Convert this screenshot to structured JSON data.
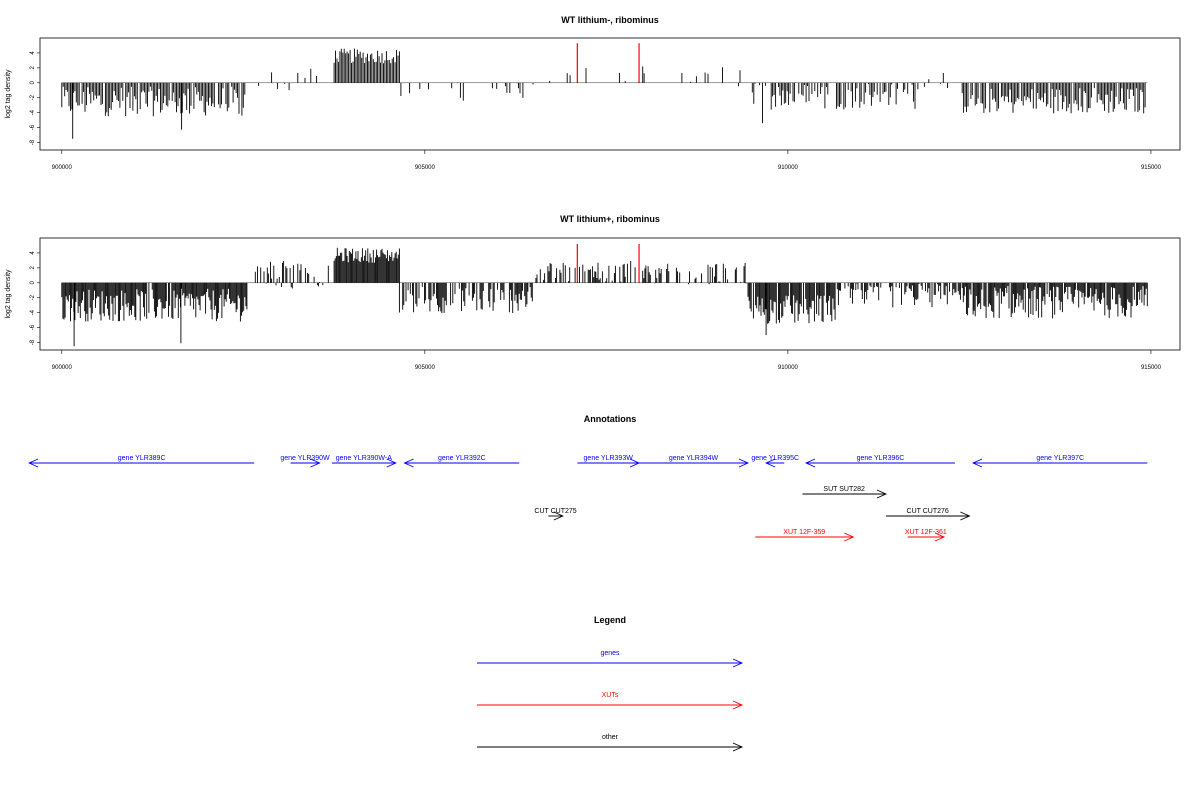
{
  "chart_data": [
    {
      "type": "bar",
      "title": "WT lithium-, ribominus",
      "ylabel": "log2 tag density",
      "xlim": [
        899700,
        915400
      ],
      "ylim": [
        -9,
        6
      ],
      "x_ticks": [
        900000,
        905000,
        910000,
        915000
      ],
      "x_tick_labels": [
        "900000",
        "905000",
        "910000",
        "915000"
      ],
      "y_ticks": [
        4,
        2,
        0,
        -2,
        -4,
        -6,
        -8
      ],
      "y_tick_labels": [
        "4",
        "2",
        "0",
        "-2",
        "-4",
        "-6",
        "-8"
      ],
      "bar_color": "#000000",
      "highlight_color": "#ff0000",
      "highlight_bars": [
        {
          "x": 907100,
          "value": 5.3
        },
        {
          "x": 907950,
          "value": 5.3
        }
      ],
      "profile": {
        "step": 20,
        "segments": [
          {
            "from": 900000,
            "to": 902550,
            "mean": -2.5,
            "spread": 2.0,
            "density": 0.9
          },
          {
            "from": 902650,
            "to": 903750,
            "mean": 0.4,
            "spread": 1.5,
            "density": 0.2
          },
          {
            "from": 903750,
            "to": 904650,
            "mean": 3.6,
            "spread": 1.0,
            "density": 1.0
          },
          {
            "from": 904650,
            "to": 906500,
            "mean": -1.0,
            "spread": 1.4,
            "density": 0.18
          },
          {
            "from": 906500,
            "to": 909450,
            "mean": 0.8,
            "spread": 1.5,
            "density": 0.14
          },
          {
            "from": 909450,
            "to": 911800,
            "mean": -1.8,
            "spread": 1.8,
            "density": 0.55
          },
          {
            "from": 911800,
            "to": 912400,
            "mean": 0.4,
            "spread": 1.2,
            "density": 0.12
          },
          {
            "from": 912400,
            "to": 914950,
            "mean": -2.4,
            "spread": 1.8,
            "density": 0.9
          }
        ],
        "spikes": [
          {
            "x": 900150,
            "value": -7.5
          },
          {
            "x": 901650,
            "value": -6.3
          },
          {
            "x": 909650,
            "value": -5.4
          }
        ]
      }
    },
    {
      "type": "bar",
      "title": "WT lithium+, ribominus",
      "ylabel": "log2 tag density",
      "xlim": [
        899700,
        915400
      ],
      "ylim": [
        -9,
        6
      ],
      "x_ticks": [
        900000,
        905000,
        910000,
        915000
      ],
      "x_tick_labels": [
        "900000",
        "905000",
        "910000",
        "915000"
      ],
      "y_ticks": [
        4,
        2,
        0,
        -2,
        -4,
        -6,
        -8
      ],
      "y_tick_labels": [
        "4",
        "2",
        "0",
        "-2",
        "-4",
        "-6",
        "-8"
      ],
      "bar_color": "#000000",
      "highlight_color": "#ff0000",
      "highlight_bars": [
        {
          "x": 907100,
          "value": 5.2
        },
        {
          "x": 907950,
          "value": 5.2
        }
      ],
      "profile": {
        "step": 15,
        "segments": [
          {
            "from": 900000,
            "to": 902550,
            "mean": -3.0,
            "spread": 2.2,
            "density": 0.95
          },
          {
            "from": 902650,
            "to": 903750,
            "mean": 1.0,
            "spread": 2.0,
            "density": 0.35
          },
          {
            "from": 903750,
            "to": 904650,
            "mean": 3.7,
            "spread": 1.0,
            "density": 1.0
          },
          {
            "from": 904650,
            "to": 906500,
            "mean": -2.3,
            "spread": 1.8,
            "density": 0.6
          },
          {
            "from": 906500,
            "to": 909450,
            "mean": 1.4,
            "spread": 1.6,
            "density": 0.45
          },
          {
            "from": 909450,
            "to": 910650,
            "mean": -3.6,
            "spread": 2.0,
            "density": 0.95
          },
          {
            "from": 910650,
            "to": 912400,
            "mean": -1.0,
            "spread": 2.4,
            "density": 0.65
          },
          {
            "from": 912400,
            "to": 914950,
            "mean": -2.6,
            "spread": 2.2,
            "density": 0.95
          }
        ],
        "spikes": [
          {
            "x": 900170,
            "value": -8.5
          },
          {
            "x": 901640,
            "value": -8.1
          },
          {
            "x": 909700,
            "value": -7.0
          }
        ]
      }
    }
  ],
  "annotations": {
    "title": "Annotations",
    "xlim": [
      899700,
      915400
    ],
    "features": [
      {
        "label": "gene YLR389C",
        "start": 899550,
        "end": 902650,
        "strand": "-",
        "row": 0,
        "color": "#0000ff"
      },
      {
        "label": "gene YLR390W",
        "start": 903150,
        "end": 903550,
        "strand": "+",
        "row": 0,
        "color": "#0000ff"
      },
      {
        "label": "gene YLR390W-A",
        "start": 903720,
        "end": 904600,
        "strand": "+",
        "row": 0,
        "color": "#0000ff"
      },
      {
        "label": "gene YLR392C",
        "start": 904720,
        "end": 906300,
        "strand": "-",
        "row": 0,
        "color": "#0000ff"
      },
      {
        "label": "gene YLR393W",
        "start": 907100,
        "end": 907950,
        "strand": "+",
        "row": 0,
        "color": "#0000ff"
      },
      {
        "label": "gene YLR394W",
        "start": 907950,
        "end": 909450,
        "strand": "+",
        "row": 0,
        "color": "#0000ff"
      },
      {
        "label": "gene YLR395C",
        "start": 909700,
        "end": 909950,
        "strand": "-",
        "row": 0,
        "color": "#0000ff"
      },
      {
        "label": "gene YLR396C",
        "start": 910250,
        "end": 912300,
        "strand": "-",
        "row": 0,
        "color": "#0000ff"
      },
      {
        "label": "gene YLR397C",
        "start": 912550,
        "end": 914950,
        "strand": "-",
        "row": 0,
        "color": "#0000ff"
      },
      {
        "label": "SUT SUT282",
        "start": 910200,
        "end": 911350,
        "strand": "+",
        "row": 1,
        "color": "#000000"
      },
      {
        "label": "CUT CUT275",
        "start": 906700,
        "end": 906900,
        "strand": "+",
        "row": 2,
        "color": "#000000"
      },
      {
        "label": "CUT CUT276",
        "start": 911350,
        "end": 912500,
        "strand": "+",
        "row": 2,
        "color": "#000000"
      },
      {
        "label": "XUT 12F-359",
        "start": 909550,
        "end": 910900,
        "strand": "+",
        "row": 3,
        "color": "#ff0000"
      },
      {
        "label": "XUT 12F-361",
        "start": 911650,
        "end": 912150,
        "strand": "+",
        "row": 3,
        "color": "#ff0000"
      }
    ]
  },
  "legend": {
    "title": "Legend",
    "entries": [
      {
        "label": "genes",
        "color": "#0000ff"
      },
      {
        "label": "XUTs",
        "color": "#ff0000"
      },
      {
        "label": "other",
        "color": "#000000"
      }
    ]
  }
}
